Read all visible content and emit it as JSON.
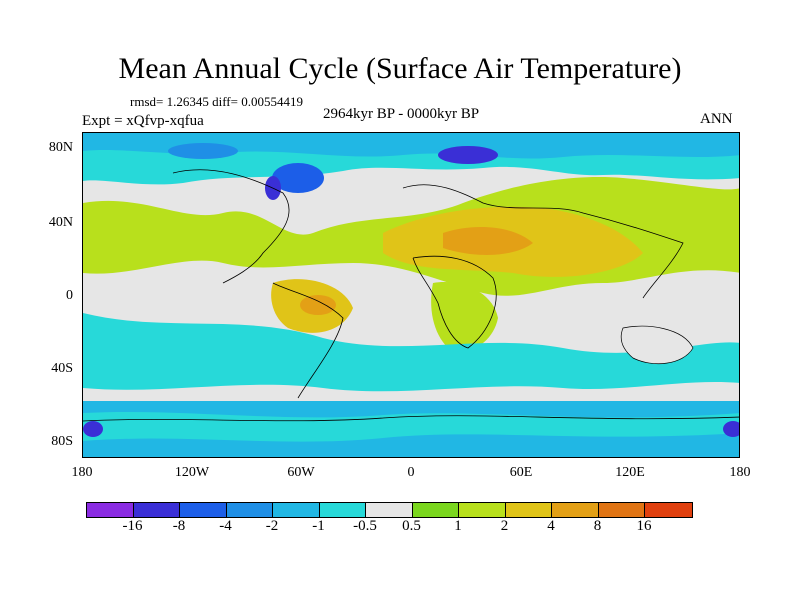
{
  "title": "Mean Annual Cycle (Surface Air Temperature)",
  "stats": "rmsd= 1.26345 diff= 0.00554419",
  "experiment": "Expt = xQfvp-xqfua",
  "period": "2964kyr BP - 0000kyr BP",
  "season": "ANN",
  "y_axis_labels": [
    "80N",
    "40N",
    "0",
    "40S",
    "80S"
  ],
  "x_axis_labels": [
    "180",
    "120W",
    "60W",
    "0",
    "60E",
    "120E",
    "180"
  ],
  "colorbar": {
    "labels": [
      "-16",
      "-8",
      "-4",
      "-2",
      "-1",
      "-0.5",
      "0.5",
      "1",
      "2",
      "4",
      "8",
      "16"
    ],
    "colors": [
      "#8a2be2",
      "#3a2fd6",
      "#1c5ee8",
      "#1f8fe6",
      "#21b7e4",
      "#27d9d9",
      "#e6e6e6",
      "#7ad61e",
      "#b8e01c",
      "#e0c418",
      "#e3a016",
      "#e07414",
      "#e0400f"
    ]
  }
}
